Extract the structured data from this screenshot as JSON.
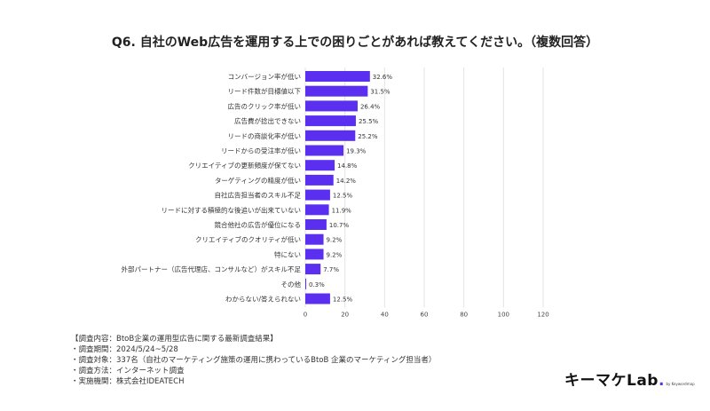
{
  "title": "Q6. 自社のWeb広告を運用する上での困りごとがあれば教えてください。（複数回答）",
  "chart_data": {
    "type": "bar",
    "orientation": "horizontal",
    "categories": [
      "コンバージョン率が低い",
      "リード件数が目標値以下",
      "広告のクリック率が低い",
      "広告費が捻出できない",
      "リードの商談化率が低い",
      "リードからの受注率が低い",
      "クリエイティブの更新頻度が保てない",
      "ターゲティングの精度が低い",
      "自社広告担当者のスキル不足",
      "リードに対する積極的な後追いが出来ていない",
      "競合他社の広告が優位になる",
      "クリエイティブのクオリティが低い",
      "特にない",
      "外部パートナー（広告代理店、コンサルなど）がスキル不足",
      "その他",
      "わからない/答えられない"
    ],
    "values": [
      32.6,
      31.5,
      26.4,
      25.5,
      25.2,
      19.3,
      14.8,
      14.2,
      12.5,
      11.9,
      10.7,
      9.2,
      9.2,
      7.7,
      0.3,
      12.5
    ],
    "value_labels": [
      "32.6%",
      "31.5%",
      "26.4%",
      "25.5%",
      "25.2%",
      "19.3%",
      "14.8%",
      "14.2%",
      "12.5%",
      "11.9%",
      "10.7%",
      "9.2%",
      "9.2%",
      "7.7%",
      "0.3%",
      "12.5%"
    ],
    "xlim": [
      0,
      120
    ],
    "xticks": [
      0,
      20,
      40,
      60,
      80,
      100,
      120
    ],
    "xtick_labels": [
      "0",
      "20",
      "40",
      "60",
      "80",
      "100",
      "120"
    ],
    "grid": true,
    "bar_color": "#5a2ff0",
    "grid_color": "#e3e3e3"
  },
  "notes": [
    "【調査内容：BtoB企業の運用型広告に関する最新調査結果】",
    "・調査期間：2024/5/24~5/28",
    "・調査対象：337名（自社のマーケティング施策の運用に携わっているBtoB 企業のマーケティング担当者）",
    "・調査方法：インターネット調査",
    "・実施機関：株式会社IDEATECH"
  ],
  "logo": {
    "text": "キーマケLab",
    "dot": ".",
    "sub": "by Keywordmap"
  }
}
